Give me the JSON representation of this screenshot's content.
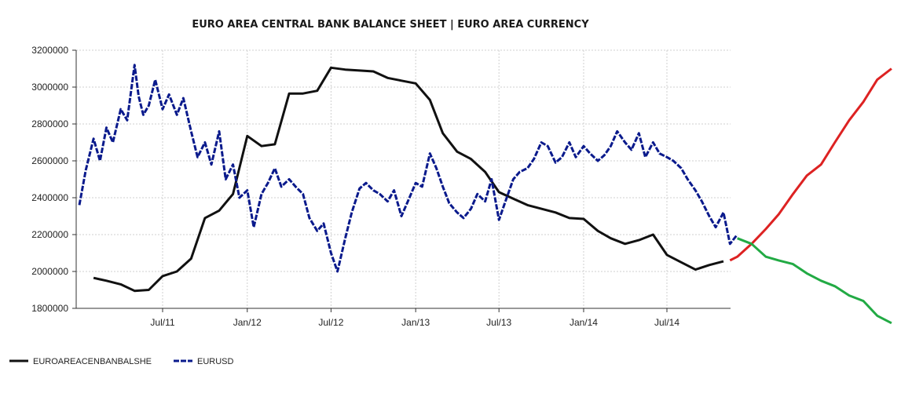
{
  "chart_data": {
    "type": "line",
    "title": "EURO AREA CENTRAL BANK BALANCE SHEET  |  EURO AREA CURRENCY",
    "xlabel": "",
    "ylabel": "",
    "ylim": [
      1800000,
      3200000
    ],
    "xlim": [
      "2011-01-01",
      "2014-12-01"
    ],
    "grid": true,
    "legend_position": "bottom-left",
    "x_ticks": [
      "Jul/11",
      "Jan/12",
      "Jul/12",
      "Jan/13",
      "Jul/13",
      "Jan/14",
      "Jul/14"
    ],
    "x_tick_dates": [
      "2011-07-01",
      "2012-01-01",
      "2012-07-01",
      "2013-01-01",
      "2013-07-01",
      "2014-01-01",
      "2014-07-01"
    ],
    "y_ticks": [
      "3200000",
      "3000000",
      "2800000",
      "2600000",
      "2400000",
      "2200000",
      "2000000",
      "1800000"
    ],
    "y_tick_values": [
      3200000,
      3000000,
      2800000,
      2600000,
      2400000,
      2200000,
      2000000,
      1800000
    ],
    "series": [
      {
        "name": "EUROAREACENBANBALSHE",
        "color": "#111111",
        "style": "solid",
        "x": [
          "2011-02-01",
          "2011-03-01",
          "2011-04-01",
          "2011-05-01",
          "2011-06-01",
          "2011-07-01",
          "2011-08-01",
          "2011-09-01",
          "2011-10-01",
          "2011-11-01",
          "2011-12-01",
          "2012-01-01",
          "2012-02-01",
          "2012-03-01",
          "2012-04-01",
          "2012-05-01",
          "2012-06-01",
          "2012-07-01",
          "2012-08-01",
          "2012-09-01",
          "2012-10-01",
          "2012-11-01",
          "2012-12-01",
          "2013-01-01",
          "2013-02-01",
          "2013-03-01",
          "2013-04-01",
          "2013-05-01",
          "2013-06-01",
          "2013-07-01",
          "2013-08-01",
          "2013-09-01",
          "2013-10-01",
          "2013-11-01",
          "2013-12-01",
          "2014-01-01",
          "2014-02-01",
          "2014-03-01",
          "2014-04-01",
          "2014-05-01",
          "2014-06-01",
          "2014-07-01",
          "2014-08-01",
          "2014-09-01",
          "2014-10-01",
          "2014-11-01"
        ],
        "values": [
          1965000,
          1950000,
          1930000,
          1895000,
          1900000,
          1975000,
          2000000,
          2070000,
          2290000,
          2330000,
          2420000,
          2735000,
          2680000,
          2690000,
          2965000,
          2965000,
          2980000,
          3105000,
          3095000,
          3090000,
          3085000,
          3050000,
          3035000,
          3020000,
          2930000,
          2750000,
          2650000,
          2610000,
          2540000,
          2430000,
          2395000,
          2360000,
          2340000,
          2320000,
          2290000,
          2285000,
          2220000,
          2180000,
          2150000,
          2170000,
          2200000,
          2090000,
          2050000,
          2010000,
          2035000,
          2055000
        ]
      },
      {
        "name": "EURUSD",
        "color": "#0a1a8c",
        "style": "dashed",
        "x": [
          "2011-01-01",
          "2011-01-15",
          "2011-02-01",
          "2011-02-15",
          "2011-03-01",
          "2011-03-15",
          "2011-04-01",
          "2011-04-15",
          "2011-05-01",
          "2011-05-10",
          "2011-05-20",
          "2011-06-01",
          "2011-06-15",
          "2011-07-01",
          "2011-07-15",
          "2011-08-01",
          "2011-08-15",
          "2011-09-01",
          "2011-09-15",
          "2011-10-01",
          "2011-10-15",
          "2011-11-01",
          "2011-11-15",
          "2011-12-01",
          "2011-12-15",
          "2012-01-01",
          "2012-01-15",
          "2012-02-01",
          "2012-02-15",
          "2012-03-01",
          "2012-03-15",
          "2012-04-01",
          "2012-04-15",
          "2012-05-01",
          "2012-05-15",
          "2012-06-01",
          "2012-06-15",
          "2012-07-01",
          "2012-07-15",
          "2012-08-01",
          "2012-08-15",
          "2012-09-01",
          "2012-09-15",
          "2012-10-01",
          "2012-10-15",
          "2012-11-01",
          "2012-11-15",
          "2012-12-01",
          "2012-12-15",
          "2013-01-01",
          "2013-01-15",
          "2013-02-01",
          "2013-02-15",
          "2013-03-01",
          "2013-03-15",
          "2013-04-01",
          "2013-04-15",
          "2013-05-01",
          "2013-05-15",
          "2013-06-01",
          "2013-06-15",
          "2013-07-01",
          "2013-07-15",
          "2013-08-01",
          "2013-08-15",
          "2013-09-01",
          "2013-09-15",
          "2013-10-01",
          "2013-10-15",
          "2013-11-01",
          "2013-11-15",
          "2013-12-01",
          "2013-12-15",
          "2014-01-01",
          "2014-01-15",
          "2014-02-01",
          "2014-02-15",
          "2014-03-01",
          "2014-03-15",
          "2014-04-01",
          "2014-04-15",
          "2014-05-01",
          "2014-05-15",
          "2014-06-01",
          "2014-06-15",
          "2014-07-01",
          "2014-07-15",
          "2014-08-01",
          "2014-08-15",
          "2014-09-01",
          "2014-09-15",
          "2014-10-01",
          "2014-10-15",
          "2014-11-01",
          "2014-11-15",
          "2014-12-01"
        ],
        "values": [
          2360000,
          2550000,
          2720000,
          2600000,
          2780000,
          2700000,
          2880000,
          2820000,
          3120000,
          2950000,
          2850000,
          2900000,
          3040000,
          2880000,
          2960000,
          2850000,
          2940000,
          2760000,
          2620000,
          2700000,
          2580000,
          2760000,
          2500000,
          2580000,
          2400000,
          2440000,
          2240000,
          2420000,
          2480000,
          2560000,
          2460000,
          2500000,
          2460000,
          2420000,
          2290000,
          2220000,
          2260000,
          2100000,
          2000000,
          2180000,
          2320000,
          2450000,
          2480000,
          2440000,
          2420000,
          2380000,
          2440000,
          2300000,
          2380000,
          2480000,
          2460000,
          2640000,
          2560000,
          2460000,
          2370000,
          2320000,
          2290000,
          2340000,
          2420000,
          2380000,
          2500000,
          2280000,
          2380000,
          2500000,
          2540000,
          2560000,
          2610000,
          2700000,
          2680000,
          2590000,
          2620000,
          2700000,
          2620000,
          2680000,
          2640000,
          2600000,
          2630000,
          2680000,
          2760000,
          2700000,
          2660000,
          2750000,
          2620000,
          2700000,
          2640000,
          2620000,
          2600000,
          2560000,
          2500000,
          2440000,
          2380000,
          2300000,
          2240000,
          2320000,
          2150000,
          2200000
        ]
      }
    ],
    "annotations": [
      {
        "color": "#dd2222",
        "x": [
          "2014-11-15",
          "2014-12-01",
          "2015-01-01",
          "2015-02-01",
          "2015-03-01",
          "2015-04-01",
          "2015-05-01",
          "2015-06-01",
          "2015-07-01",
          "2015-08-01",
          "2015-09-01",
          "2015-10-01",
          "2015-11-01"
        ],
        "values": [
          2060000,
          2080000,
          2150000,
          2230000,
          2310000,
          2420000,
          2520000,
          2580000,
          2700000,
          2820000,
          2920000,
          3040000,
          3100000
        ]
      },
      {
        "color": "#22aa44",
        "x": [
          "2014-12-01",
          "2015-01-01",
          "2015-02-01",
          "2015-03-01",
          "2015-04-01",
          "2015-05-01",
          "2015-06-01",
          "2015-07-01",
          "2015-08-01",
          "2015-09-01",
          "2015-10-01",
          "2015-11-01"
        ],
        "values": [
          2180000,
          2150000,
          2080000,
          2060000,
          2040000,
          1990000,
          1950000,
          1920000,
          1870000,
          1840000,
          1760000,
          1720000
        ]
      }
    ]
  }
}
